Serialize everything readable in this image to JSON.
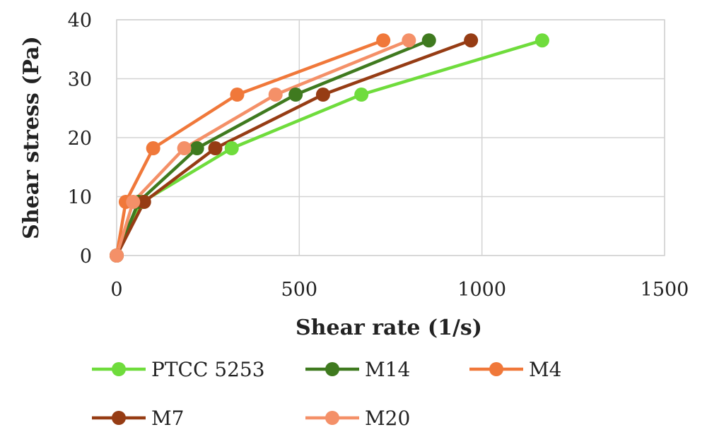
{
  "chart_data": {
    "type": "line",
    "title": "",
    "xlabel": "Shear rate (1/s)",
    "ylabel": "Shear stress (Pa)",
    "xlim": [
      0,
      1500
    ],
    "ylim": [
      0,
      40
    ],
    "x_ticks": [
      "0",
      "500",
      "1000",
      "1500"
    ],
    "y_ticks": [
      "0",
      "10",
      "20",
      "30",
      "40"
    ],
    "grid": true,
    "legend_position": "bottom",
    "series": [
      {
        "name": "PTCC 5253",
        "color": "#6fdc3c",
        "points": [
          [
            0,
            0
          ],
          [
            70,
            9.1
          ],
          [
            315,
            18.2
          ],
          [
            670,
            27.3
          ],
          [
            1165,
            36.5
          ]
        ]
      },
      {
        "name": "M14",
        "color": "#3f7a1f",
        "points": [
          [
            0,
            0
          ],
          [
            60,
            9.1
          ],
          [
            220,
            18.2
          ],
          [
            490,
            27.3
          ],
          [
            855,
            36.5
          ]
        ]
      },
      {
        "name": "M4",
        "color": "#f0783a",
        "points": [
          [
            0,
            0
          ],
          [
            25,
            9.1
          ],
          [
            100,
            18.2
          ],
          [
            330,
            27.3
          ],
          [
            730,
            36.5
          ]
        ]
      },
      {
        "name": "M7",
        "color": "#963c14",
        "points": [
          [
            0,
            0
          ],
          [
            75,
            9.1
          ],
          [
            270,
            18.2
          ],
          [
            565,
            27.3
          ],
          [
            970,
            36.5
          ]
        ]
      },
      {
        "name": "M20",
        "color": "#f49068",
        "points": [
          [
            0,
            0
          ],
          [
            45,
            9.1
          ],
          [
            185,
            18.2
          ],
          [
            435,
            27.3
          ],
          [
            800,
            36.5
          ]
        ]
      }
    ]
  }
}
